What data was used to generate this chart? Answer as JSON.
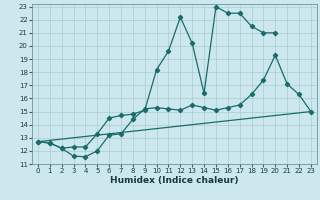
{
  "title": "",
  "xlabel": "Humidex (Indice chaleur)",
  "bg_color": "#cce8ee",
  "grid_color": "#aacccc",
  "line_color": "#1a6b6b",
  "xlim": [
    -0.5,
    23.5
  ],
  "ylim": [
    11,
    23.2
  ],
  "xticks": [
    0,
    1,
    2,
    3,
    4,
    5,
    6,
    7,
    8,
    9,
    10,
    11,
    12,
    13,
    14,
    15,
    16,
    17,
    18,
    19,
    20,
    21,
    22,
    23
  ],
  "yticks": [
    11,
    12,
    13,
    14,
    15,
    16,
    17,
    18,
    19,
    20,
    21,
    22,
    23
  ],
  "line1_x": [
    0,
    1,
    2,
    3,
    4,
    5,
    6,
    7,
    8,
    9,
    10,
    11,
    12,
    13,
    14,
    15,
    16,
    17,
    18,
    19,
    20,
    21,
    22,
    23
  ],
  "line1_y": [
    12.7,
    12.6,
    12.2,
    11.6,
    11.55,
    12.0,
    13.2,
    13.3,
    14.4,
    15.2,
    15.3,
    15.2,
    15.1,
    15.5,
    15.3,
    15.1,
    15.3,
    15.5,
    16.3,
    17.4,
    19.3,
    17.1,
    16.3,
    15.0
  ],
  "line2_x": [
    0,
    1,
    2,
    3,
    4,
    5,
    6,
    7,
    8,
    9,
    10,
    11,
    12,
    13,
    14,
    15,
    16,
    17,
    18,
    19,
    20
  ],
  "line2_y": [
    12.7,
    12.6,
    12.2,
    12.3,
    12.3,
    13.3,
    14.5,
    14.7,
    14.8,
    15.1,
    18.2,
    19.6,
    22.2,
    20.2,
    16.4,
    23.0,
    22.5,
    22.5,
    21.5,
    21.0,
    21.0
  ],
  "line3_x": [
    0,
    23
  ],
  "line3_y": [
    12.7,
    15.0
  ],
  "marker": "D",
  "markersize": 2.2,
  "linewidth": 0.9,
  "axis_fontsize": 6.5,
  "tick_fontsize": 5.0
}
